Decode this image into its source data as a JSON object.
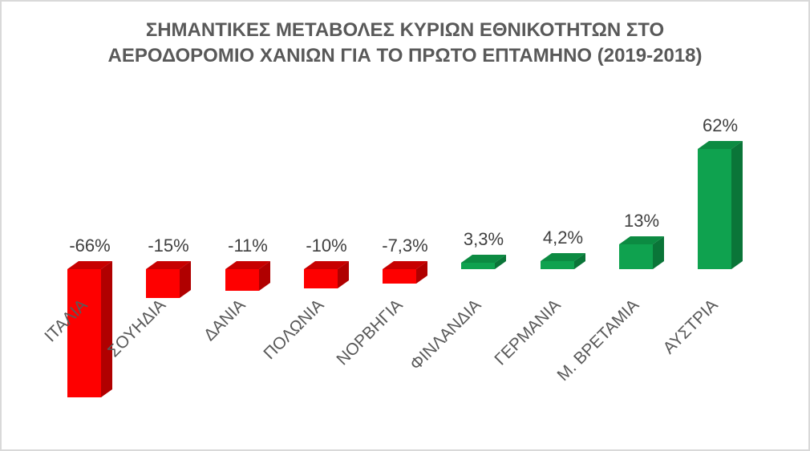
{
  "page": {
    "background_color": "#FFFFFF",
    "border_color": "#D9D9D9"
  },
  "chart_data": {
    "type": "bar",
    "style": "3d-column",
    "title": "ΣΗΜΑΝΤΙΚΕΣ ΜΕΤΑΒΟΛΕΣ ΚΥΡΙΩΝ ΕΘΝΙΚΟΤΗΤΩΝ ΣΤΟ ΑΕΡΟΔΟΡΟΜΙΟ ΧΑΝΙΩΝ ΓΙΑ ΤΟ ΠΡΩΤΟ ΕΠΤΑΜΗΝΟ (2019-2018)",
    "title_lines": [
      "ΣΗΜΑΝΤΙΚΕΣ ΜΕΤΑΒΟΛΕΣ ΚΥΡΙΩΝ ΕΘΝΙΚΟΤΗΤΩΝ ΣΤΟ",
      "ΑΕΡΟΔΟΡΟΜΙΟ ΧΑΝΙΩΝ ΓΙΑ ΤΟ ΠΡΩΤΟ ΕΠΤΑΜΗΝΟ (2019-2018)"
    ],
    "categories": [
      "ΙΤΑΛΙΑ",
      "ΣΟΥΗΔΙΑ",
      "ΔΑΝΙΑ",
      "ΠΟΛΩΝΙΑ",
      "ΝΟΡΒΗΓΙΑ",
      "ΦΙΝΛΑΝΔΙΑ",
      "ΓΕΡΜΑΝΙΑ",
      "Μ. ΒΡΕΤΑΜΙΑ",
      "ΑΥΣΤΡΙΑ"
    ],
    "values": [
      -66,
      -15,
      -11,
      -10,
      -7.3,
      3.3,
      4.2,
      13,
      62
    ],
    "data_labels": [
      "-66%",
      "-15%",
      "-11%",
      "-10%",
      "-7,3%",
      "3,3%",
      "4,2%",
      "13%",
      "62%"
    ],
    "xlabel": "",
    "ylabel": "",
    "ylim": [
      -70,
      70
    ],
    "grid": false,
    "legend": "none",
    "axis_labels_rotation_deg": 45,
    "colors": {
      "negative": {
        "front": "#FE0000",
        "top": "#C70000",
        "side": "#B00000"
      },
      "positive": {
        "front": "#0FA24F",
        "top": "#0C8B42",
        "side": "#0A7538"
      },
      "title_text": "#595959",
      "data_label_text": "#404040",
      "category_label_text": "#595959"
    }
  }
}
